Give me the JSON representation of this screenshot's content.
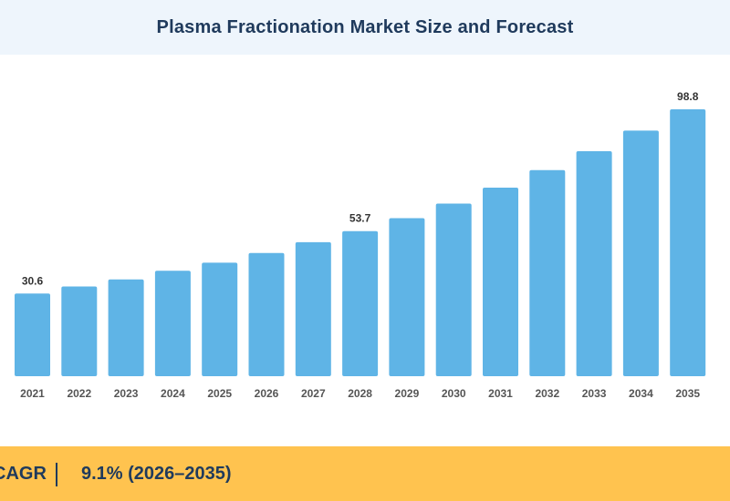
{
  "header": {
    "title": "Plasma Fractionation Market Size and Forecast"
  },
  "chart_data": {
    "type": "bar",
    "title": "Plasma Fractionation Market Size and Forecast",
    "xlabel": "",
    "ylabel": "",
    "categories": [
      "2021",
      "2022",
      "2023",
      "2024",
      "2025",
      "2026",
      "2027",
      "2028",
      "2029",
      "2030",
      "2031",
      "2032",
      "2033",
      "2034",
      "2035"
    ],
    "values": [
      30.6,
      33.2,
      35.8,
      39.0,
      42.0,
      45.6,
      49.6,
      53.7,
      58.5,
      63.9,
      69.8,
      76.3,
      83.3,
      90.9,
      98.8
    ],
    "labeled": [
      0,
      7,
      14
    ],
    "ylim": [
      0,
      98.8
    ],
    "grid": false,
    "bar_color": "#5fb4e6"
  },
  "footer": {
    "cagr_label": "CAGR",
    "cagr_value": "9.1% (2026–2035)"
  },
  "colors": {
    "header_bg": "#eef5fc",
    "title_text": "#1f3a5c",
    "footer_bg": "#ffc34f"
  }
}
